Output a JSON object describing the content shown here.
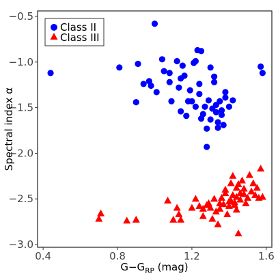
{
  "chart_data": {
    "type": "scatter",
    "xlabel_main": "G−G",
    "xlabel_sub": "RP",
    "xlabel_unit": " (mag)",
    "ylabel": "Spectral index α",
    "xlim": [
      0.4,
      1.6
    ],
    "ylim": [
      -3.0,
      -0.5
    ],
    "xticks": [
      0.4,
      0.8,
      1.2,
      1.6
    ],
    "xtick_labels": [
      "0.4",
      "0.8",
      "1.2",
      "1.6"
    ],
    "yticks": [
      -3.0,
      -2.5,
      -2.0,
      -1.5,
      -1.0,
      -0.5
    ],
    "ytick_labels": [
      "−3.0",
      "−2.5",
      "−2.0",
      "−1.5",
      "−1.0",
      "−0.5"
    ],
    "grid": false,
    "legend_position": "top-left",
    "series": [
      {
        "name": "Class II",
        "marker": "circle",
        "color": "#0000ff",
        "points": [
          [
            0.44,
            -1.12
          ],
          [
            0.81,
            -1.06
          ],
          [
            0.9,
            -1.44
          ],
          [
            0.91,
            -1.02
          ],
          [
            0.94,
            -1.24
          ],
          [
            0.97,
            -1.21
          ],
          [
            0.98,
            -1.26
          ],
          [
            1.0,
            -0.58
          ],
          [
            1.01,
            -1.33
          ],
          [
            1.04,
            -0.97
          ],
          [
            1.05,
            -1.1
          ],
          [
            1.08,
            -1.12
          ],
          [
            1.08,
            -1.22
          ],
          [
            1.09,
            -1.43
          ],
          [
            1.12,
            -0.99
          ],
          [
            1.13,
            -1.28
          ],
          [
            1.14,
            -1.54
          ],
          [
            1.14,
            -1.18
          ],
          [
            1.15,
            -1.04
          ],
          [
            1.16,
            -1.15
          ],
          [
            1.17,
            -1.59
          ],
          [
            1.18,
            -1.43
          ],
          [
            1.19,
            -1.31
          ],
          [
            1.2,
            -1.43
          ],
          [
            1.21,
            -1.01
          ],
          [
            1.22,
            -1.49
          ],
          [
            1.22,
            -0.99
          ],
          [
            1.23,
            -0.87
          ],
          [
            1.24,
            -1.24
          ],
          [
            1.24,
            -1.35
          ],
          [
            1.25,
            -0.88
          ],
          [
            1.25,
            -1.62
          ],
          [
            1.26,
            -1.57
          ],
          [
            1.27,
            -1.49
          ],
          [
            1.28,
            -1.73
          ],
          [
            1.28,
            -1.93
          ],
          [
            1.29,
            -1.42
          ],
          [
            1.3,
            -1.06
          ],
          [
            1.3,
            -1.63
          ],
          [
            1.31,
            -1.51
          ],
          [
            1.32,
            -1.16
          ],
          [
            1.32,
            -1.22
          ],
          [
            1.33,
            -1.47
          ],
          [
            1.33,
            -1.55
          ],
          [
            1.34,
            -1.66
          ],
          [
            1.34,
            -1.72
          ],
          [
            1.35,
            -1.43
          ],
          [
            1.36,
            -1.53
          ],
          [
            1.36,
            -1.58
          ],
          [
            1.37,
            -1.69
          ],
          [
            1.38,
            -1.33
          ],
          [
            1.38,
            -1.39
          ],
          [
            1.4,
            -1.49
          ],
          [
            1.42,
            -1.42
          ],
          [
            1.57,
            -1.05
          ],
          [
            1.58,
            -1.12
          ]
        ]
      },
      {
        "name": "Class III",
        "marker": "triangle",
        "color": "#ff0000",
        "points": [
          [
            0.7,
            -2.72
          ],
          [
            0.71,
            -2.66
          ],
          [
            0.85,
            -2.74
          ],
          [
            0.9,
            -2.73
          ],
          [
            1.07,
            -2.52
          ],
          [
            1.1,
            -2.73
          ],
          [
            1.12,
            -2.6
          ],
          [
            1.13,
            -2.67
          ],
          [
            1.14,
            -2.73
          ],
          [
            1.2,
            -2.6
          ],
          [
            1.22,
            -2.5
          ],
          [
            1.24,
            -2.58
          ],
          [
            1.26,
            -2.61
          ],
          [
            1.26,
            -2.69
          ],
          [
            1.28,
            -2.57
          ],
          [
            1.29,
            -2.55
          ],
          [
            1.3,
            -2.6
          ],
          [
            1.31,
            -2.72
          ],
          [
            1.32,
            -2.5
          ],
          [
            1.33,
            -2.64
          ],
          [
            1.34,
            -2.78
          ],
          [
            1.35,
            -2.55
          ],
          [
            1.35,
            -2.61
          ],
          [
            1.36,
            -2.49
          ],
          [
            1.37,
            -2.56
          ],
          [
            1.38,
            -2.44
          ],
          [
            1.38,
            -2.4
          ],
          [
            1.39,
            -2.67
          ],
          [
            1.4,
            -2.53
          ],
          [
            1.4,
            -2.58
          ],
          [
            1.41,
            -2.33
          ],
          [
            1.41,
            -2.52
          ],
          [
            1.42,
            -2.25
          ],
          [
            1.42,
            -2.46
          ],
          [
            1.43,
            -2.54
          ],
          [
            1.43,
            -2.57
          ],
          [
            1.44,
            -2.38
          ],
          [
            1.44,
            -2.48
          ],
          [
            1.44,
            -2.62
          ],
          [
            1.45,
            -2.88
          ],
          [
            1.45,
            -2.34
          ],
          [
            1.46,
            -2.44
          ],
          [
            1.46,
            -2.51
          ],
          [
            1.47,
            -2.3
          ],
          [
            1.48,
            -2.45
          ],
          [
            1.48,
            -2.39
          ],
          [
            1.49,
            -2.55
          ],
          [
            1.5,
            -2.49
          ],
          [
            1.51,
            -2.24
          ],
          [
            1.52,
            -2.42
          ],
          [
            1.53,
            -2.33
          ],
          [
            1.54,
            -2.46
          ],
          [
            1.55,
            -2.38
          ],
          [
            1.56,
            -2.49
          ],
          [
            1.57,
            -2.17
          ],
          [
            1.58,
            -2.48
          ]
        ]
      }
    ]
  }
}
